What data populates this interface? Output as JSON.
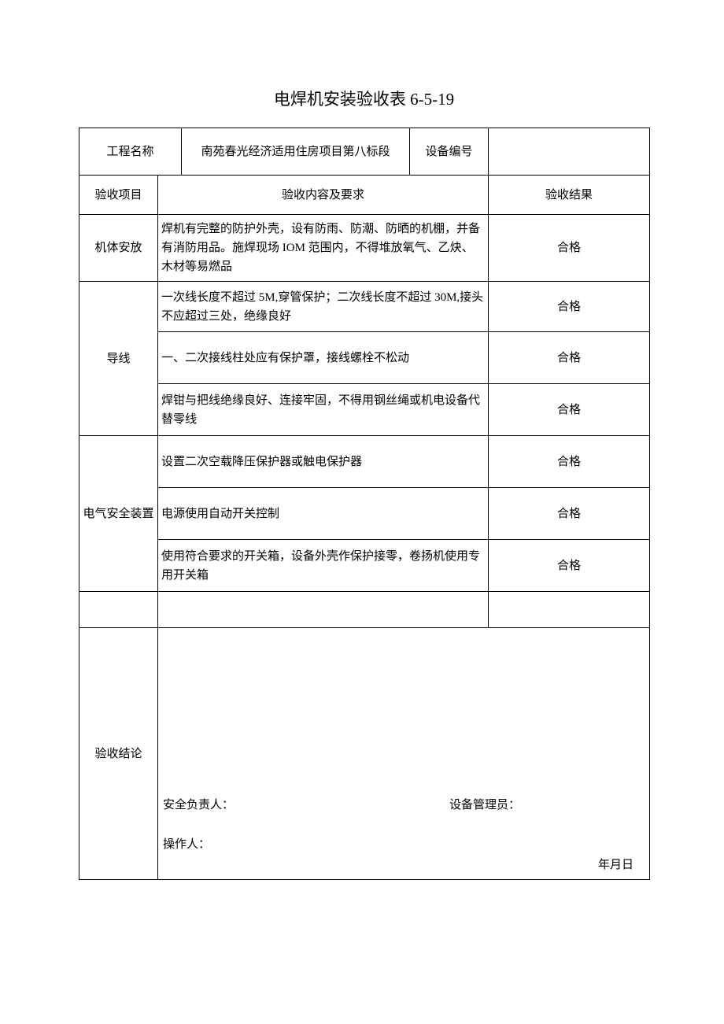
{
  "title": "电焊机安装验收表 6-5-19",
  "header": {
    "project_label": "工程名称",
    "project_name": "南苑春光经济适用住房项目第八标段",
    "equipment_label": "设备编号",
    "equipment_no": ""
  },
  "item_header": {
    "col1": "验收项目",
    "col2": "验收内容及要求",
    "col3": "验收结果"
  },
  "sections": {
    "body": {
      "label": "机体安放",
      "content": "焊机有完整的防护外壳，设有防雨、防潮、防晒的机棚，并备有消防用品。施焊现场 IOM 范围内，不得堆放氧气、乙炔、木材等易燃品",
      "result": "合格"
    },
    "wire": {
      "label": "导线",
      "rows": [
        {
          "content": "一次线长度不超过 5M,穿管保护；二次线长度不超过 30M,接头不应超过三处，绝缘良好",
          "result": "合格"
        },
        {
          "content": "一、二次接线柱处应有保护罩，接线螺栓不松动",
          "result": "合格"
        },
        {
          "content": "焊钳与把线绝缘良好、连接牢固，不得用钢丝绳或机电设备代替零线",
          "result": "合格"
        }
      ]
    },
    "electric": {
      "label": "电气安全装置",
      "rows": [
        {
          "content": "设置二次空载降压保护器或触电保护器",
          "result": "合格"
        },
        {
          "content": "电源使用自动开关控制",
          "result": "合格"
        },
        {
          "content": "使用符合要求的开关箱，设备外壳作保护接零，卷扬机使用专用开关箱",
          "result": "合格"
        }
      ]
    }
  },
  "conclusion": {
    "label": "验收结论",
    "safety_person": "安全负责人：",
    "equip_admin": "设备管理员：",
    "operator": "操作人：",
    "date": "年月日"
  },
  "style": {
    "border_color": "#000000",
    "background_color": "#ffffff",
    "text_color": "#000000",
    "title_fontsize": 21,
    "body_fontsize": 15,
    "font_family": "SimSun"
  }
}
